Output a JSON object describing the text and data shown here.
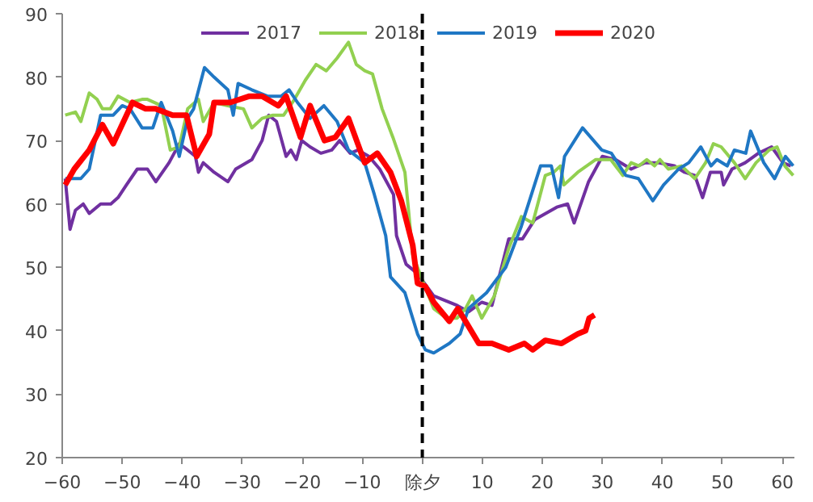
{
  "chart_data": {
    "type": "line",
    "xlim": [
      -60,
      62
    ],
    "ylim": [
      20,
      90
    ],
    "xticks": [
      -60,
      -50,
      -40,
      -30,
      -20,
      -10,
      {
        "value": 0,
        "label": "除夕"
      },
      10,
      20,
      30,
      40,
      50,
      60
    ],
    "yticks": [
      20,
      30,
      40,
      50,
      60,
      70,
      80,
      90
    ],
    "grid": false,
    "legend": "top",
    "marker": "none",
    "line_style": "solid",
    "ref_lines": [
      {
        "axis": "x",
        "value": 0,
        "color": "#000000",
        "line_style": "dashed"
      }
    ],
    "series": [
      {
        "name": "2017",
        "color": "#7030a0",
        "x": [
          -59.5,
          -58.7,
          -57.8,
          -56.5,
          -55.5,
          -53.6,
          -51.9,
          -50.7,
          -49.3,
          -47.5,
          -45.8,
          -44.4,
          -42.2,
          -40.5,
          -39.1,
          -37.8,
          -37.3,
          -36.5,
          -34.7,
          -32.4,
          -31.1,
          -28.4,
          -26.7,
          -25.6,
          -24.3,
          -22.7,
          -21.9,
          -21,
          -20.1,
          -18.7,
          -16.9,
          -15.1,
          -13.8,
          -12,
          -10.7,
          -8.9,
          -7.1,
          -4.8,
          -4.3,
          -2.7,
          -0.8,
          1.9,
          5.8,
          7.7,
          9.9,
          11.6,
          14.4,
          16.7,
          18.7,
          22.4,
          24.2,
          25.3,
          27.7,
          30,
          32.2,
          34.8,
          37.1,
          39.3,
          42,
          43.7,
          45.4,
          46.7,
          48,
          49.8,
          50.2,
          51.6,
          53.8,
          56,
          58.2,
          60.1,
          61.4
        ],
        "values": [
          64,
          56,
          59,
          60,
          58.5,
          60,
          60,
          61,
          63,
          65.5,
          65.5,
          63.5,
          66.5,
          69.5,
          68.5,
          67.5,
          65,
          66.5,
          65,
          63.5,
          65.5,
          67,
          70,
          74,
          73,
          67.5,
          68.5,
          67,
          70,
          69,
          68,
          68.5,
          70,
          68,
          68.5,
          67.5,
          65.5,
          61.5,
          55,
          50.5,
          49,
          45.5,
          44,
          43,
          44.5,
          44,
          54.5,
          54.5,
          57.5,
          59.5,
          60,
          57,
          63.5,
          67.5,
          67,
          65.5,
          66.5,
          66.5,
          66,
          65,
          64.5,
          61,
          65,
          65,
          63,
          65.5,
          66.5,
          68,
          69,
          66.5,
          66
        ]
      },
      {
        "name": "2018",
        "color": "#92d050",
        "x": [
          -59.5,
          -57.8,
          -56.9,
          -55.5,
          -54.2,
          -53.3,
          -52,
          -50.7,
          -48.7,
          -46.7,
          -45.8,
          -43.5,
          -42,
          -40.5,
          -39.1,
          -37.3,
          -36.5,
          -34.7,
          -32.4,
          -29.8,
          -28.4,
          -26.7,
          -24.9,
          -23.1,
          -21.3,
          -19.5,
          -17.7,
          -16,
          -14.2,
          -12.3,
          -11,
          -9.6,
          -8.3,
          -6.7,
          -4.9,
          -2.9,
          -1.6,
          0,
          1.9,
          4,
          5.8,
          7.2,
          8.3,
          9.9,
          12,
          14.4,
          16.5,
          18.4,
          20.5,
          21.9,
          23,
          23.6,
          25.9,
          28.9,
          31.4,
          33.4,
          34.8,
          36.1,
          37.4,
          38.7,
          39.6,
          41,
          43.2,
          45.4,
          47.2,
          48.5,
          49.8,
          52,
          53.8,
          55.6,
          57.8,
          59.1,
          60.4,
          61.8
        ],
        "values": [
          74,
          74.5,
          73,
          77.5,
          76.5,
          75,
          75,
          77,
          76,
          76.5,
          76.5,
          75.5,
          68.5,
          69,
          75,
          76.5,
          73,
          76,
          75.5,
          75,
          72,
          73.5,
          74,
          74,
          76.5,
          79.5,
          82,
          81,
          83,
          85.5,
          82,
          81,
          80.5,
          75,
          70.5,
          65,
          52,
          48,
          43.5,
          42,
          42,
          43.5,
          45.5,
          42,
          45.5,
          53,
          58,
          57,
          64.5,
          65,
          66,
          63,
          65,
          67,
          67,
          64.5,
          66.5,
          66,
          67,
          66,
          67,
          65.5,
          66,
          64,
          66.5,
          69.5,
          69,
          66.5,
          64,
          66.5,
          68.5,
          69,
          66,
          64.5
        ]
      },
      {
        "name": "2019",
        "color": "#1f77c4",
        "x": [
          -59.5,
          -56.9,
          -55.5,
          -53.6,
          -51.5,
          -50,
          -48.7,
          -46.7,
          -44.9,
          -43.5,
          -41.6,
          -40.5,
          -39.1,
          -38.1,
          -36.3,
          -34.7,
          -32.4,
          -31.5,
          -30.7,
          -28.4,
          -25.8,
          -23.5,
          -22.2,
          -20.8,
          -18.7,
          -16.4,
          -14.2,
          -12.3,
          -9.6,
          -8,
          -6.1,
          -5.3,
          -2.9,
          -0.8,
          0.5,
          1.9,
          4.5,
          6.3,
          7.7,
          10.7,
          13.9,
          16.5,
          19.7,
          21.5,
          22.7,
          23.7,
          26.7,
          29.9,
          31.5,
          33.9,
          36,
          38.4,
          40.2,
          42.7,
          44.4,
          46.4,
          48.1,
          49.1,
          50.8,
          52,
          53.9,
          54.7,
          56.9,
          58.7,
          60.5,
          61.8
        ],
        "values": [
          64,
          64,
          65.5,
          74,
          74,
          75.5,
          75,
          72,
          72,
          76,
          71.5,
          67.5,
          73.5,
          75,
          81.5,
          80,
          78,
          74,
          79,
          78,
          77,
          77,
          78,
          76,
          73.5,
          75.5,
          73,
          68.5,
          66.5,
          61.5,
          55,
          48.5,
          46,
          39.5,
          37,
          36.5,
          38,
          39.5,
          43.5,
          46,
          50,
          56.5,
          66,
          66,
          61,
          67.5,
          72,
          68.5,
          68,
          64.5,
          64,
          60.5,
          63,
          65.5,
          66.5,
          69,
          66,
          67,
          66,
          68.5,
          68,
          71.5,
          66.5,
          64,
          67.5,
          66
        ]
      },
      {
        "name": "2020",
        "color": "#ff0000",
        "x": [
          -59.5,
          -58,
          -55.5,
          -53.3,
          -51.5,
          -48.3,
          -46.1,
          -44.4,
          -41.6,
          -39.3,
          -37.6,
          -35.5,
          -34.7,
          -32,
          -28.8,
          -26.7,
          -24,
          -22.7,
          -20.3,
          -18.7,
          -16.3,
          -14.5,
          -12.3,
          -9.6,
          -7.5,
          -5.3,
          -3.5,
          -1.6,
          -0.8,
          0.5,
          1.9,
          4.5,
          5.9,
          7.2,
          9.4,
          11.6,
          14.4,
          17,
          18.4,
          20.5,
          23.2,
          25.9,
          27.2,
          27.8,
          28.7
        ],
        "values": [
          63,
          65.5,
          68.5,
          72.5,
          69.5,
          76,
          75,
          75,
          74,
          74,
          67.5,
          71,
          76,
          76,
          77,
          77,
          75.5,
          77,
          70.5,
          75.5,
          70,
          70.5,
          73.5,
          66.5,
          68,
          65,
          60.5,
          53.5,
          47.5,
          47,
          44.5,
          41.5,
          43.5,
          41.5,
          38,
          38,
          37,
          38,
          37,
          38.5,
          38,
          39.5,
          40,
          42,
          42.5
        ]
      }
    ]
  }
}
